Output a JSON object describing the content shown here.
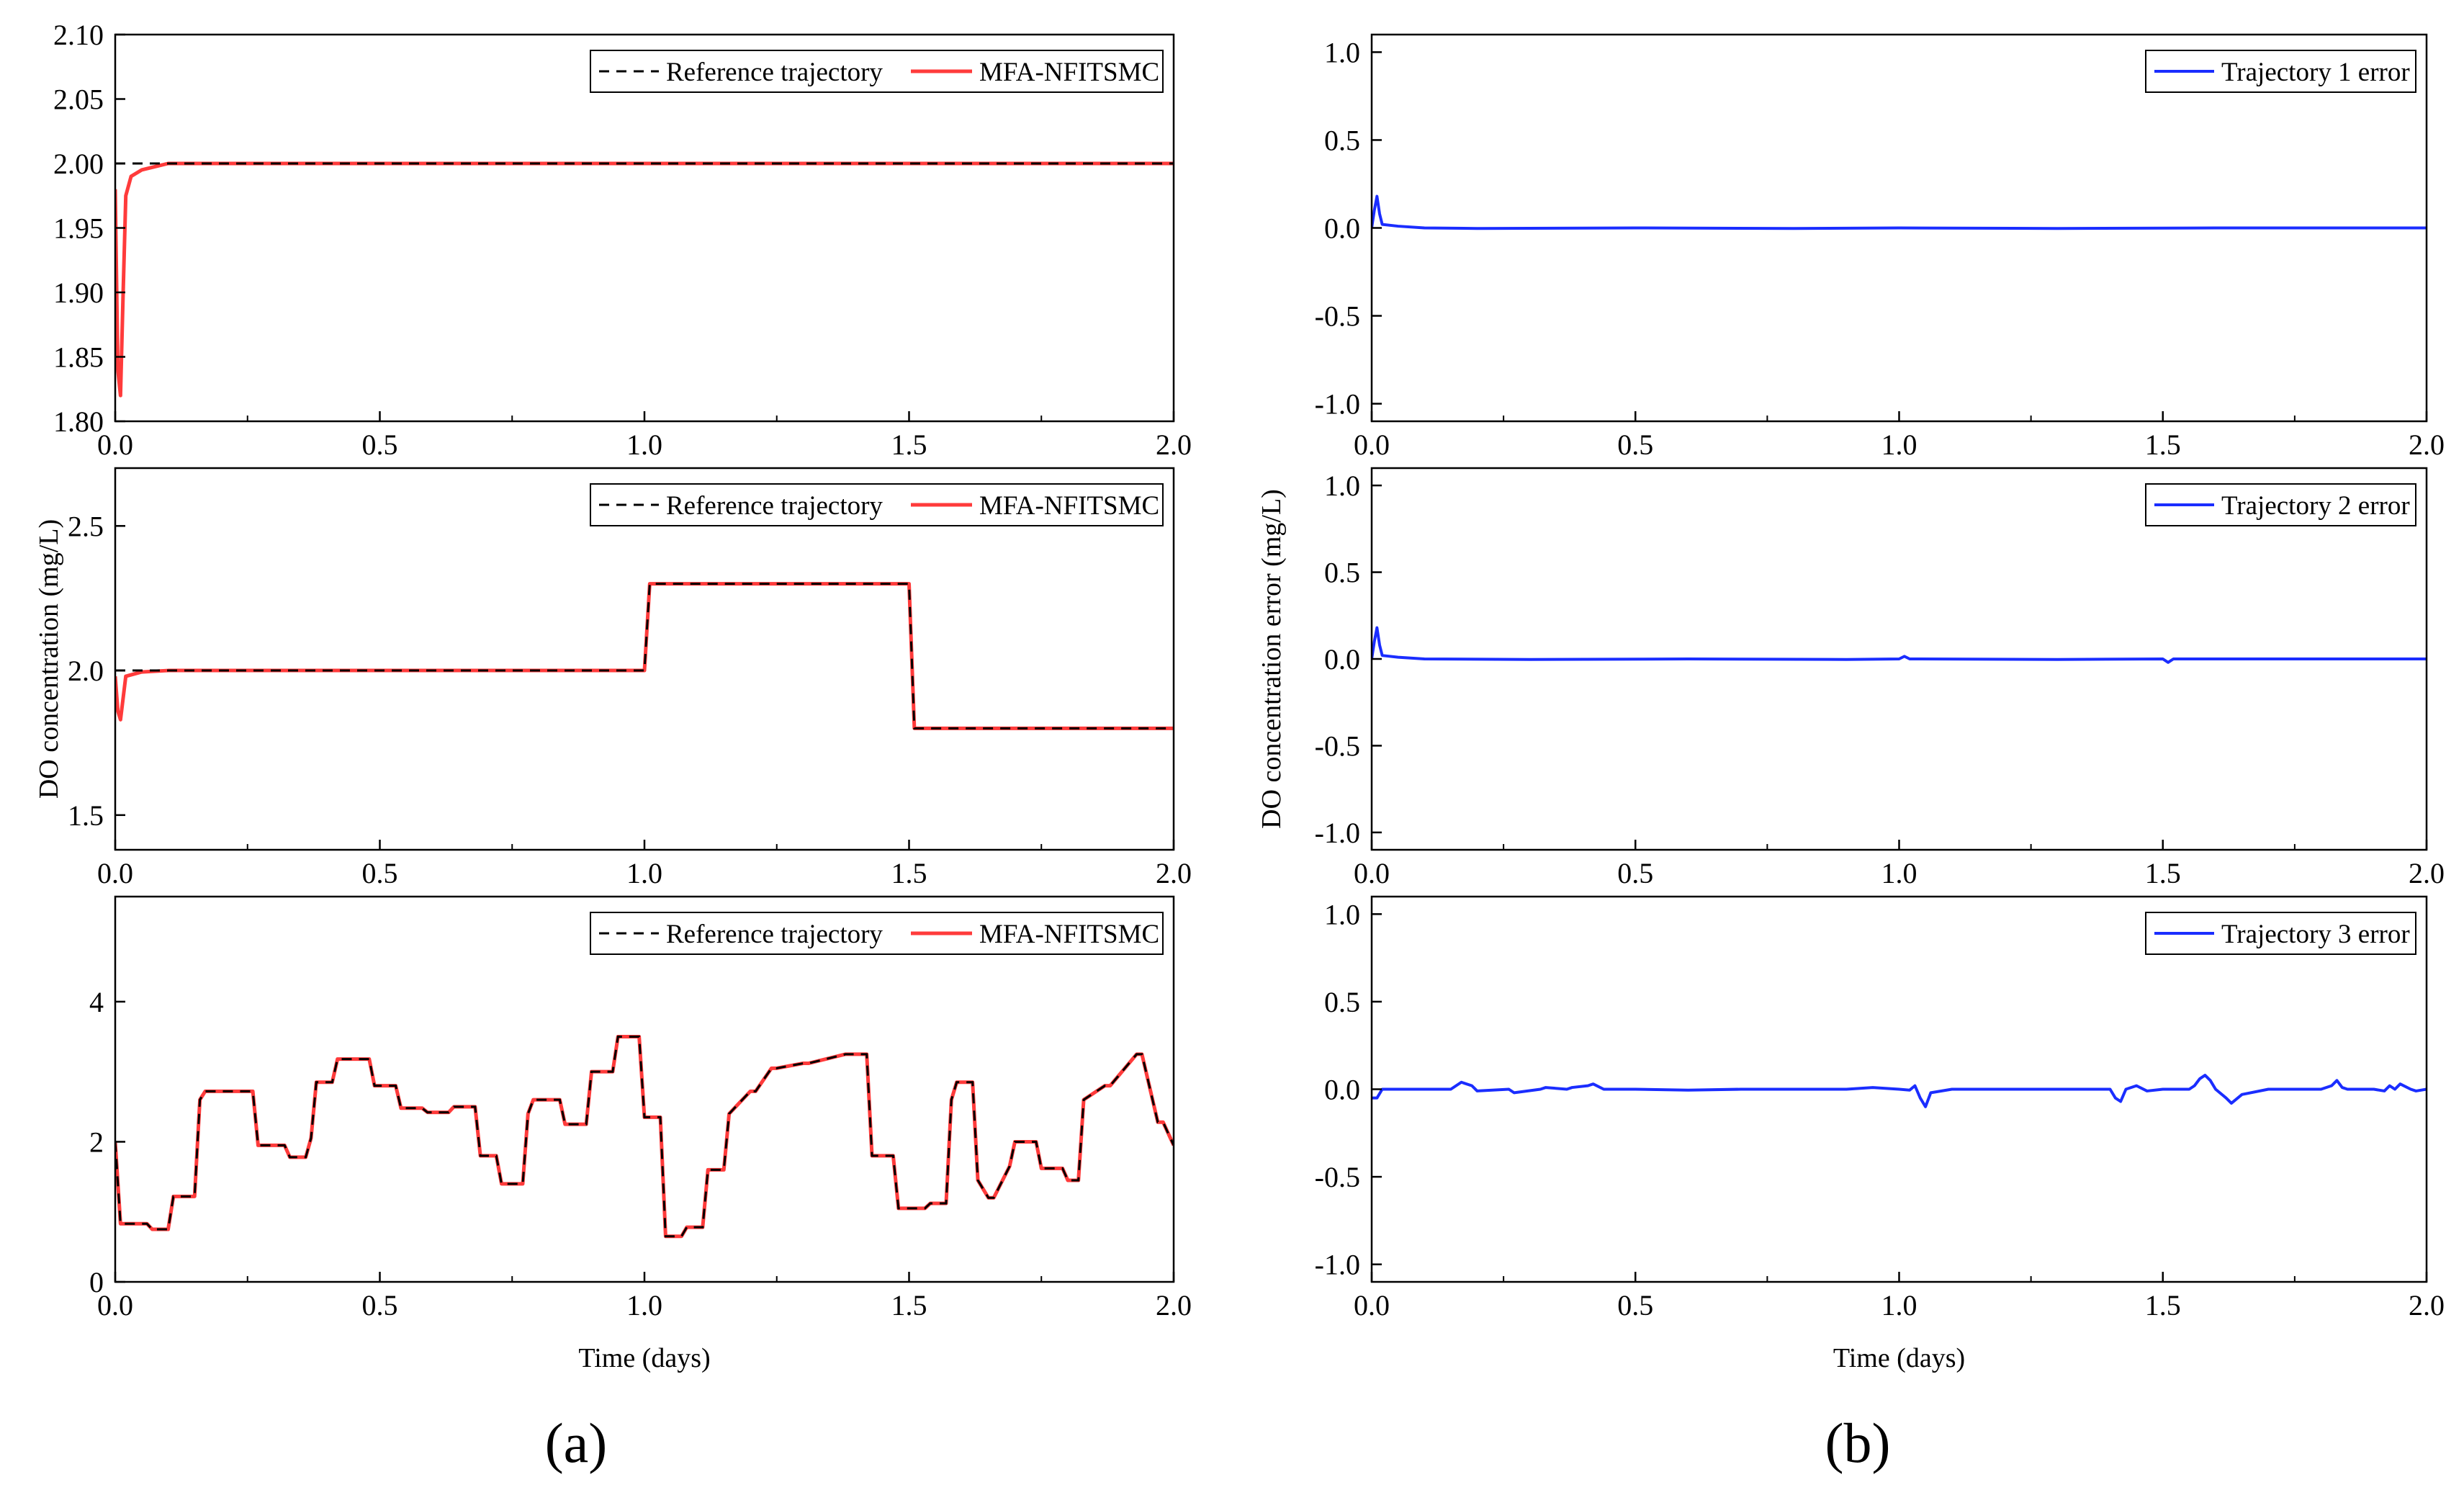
{
  "figure": {
    "panel_labels": [
      "(a)",
      "(b)"
    ]
  },
  "colors": {
    "reference": "#000000",
    "mfa": "#ff3b3b",
    "error": "#1a2dff",
    "axis": "#000000"
  },
  "chart_data": [
    {
      "id": "a1",
      "type": "line",
      "xlabel": "",
      "ylabel": "",
      "xlim": [
        0,
        2
      ],
      "ylim": [
        1.8,
        2.1
      ],
      "xticks": [
        0,
        0.5,
        1,
        1.5,
        2
      ],
      "xtick_labels": [
        "0.0",
        "0.5",
        "1.0",
        "1.5",
        "2.0"
      ],
      "yticks": [
        1.8,
        1.85,
        1.9,
        1.95,
        2.0,
        2.05,
        2.1
      ],
      "ytick_labels": [
        "1.80",
        "1.85",
        "1.90",
        "1.95",
        "2.00",
        "2.05",
        "2.10"
      ],
      "legend": [
        "Reference trajectory",
        "MFA-NFITSMC"
      ],
      "legend_position": "top-right",
      "series": [
        {
          "name": "Reference trajectory",
          "style": "dashed",
          "x": [
            0,
            2
          ],
          "y": [
            2.0,
            2.0
          ]
        },
        {
          "name": "MFA-NFITSMC",
          "style": "solid",
          "x": [
            0,
            0.005,
            0.01,
            0.015,
            0.02,
            0.03,
            0.05,
            0.08,
            0.1,
            0.12,
            2.0
          ],
          "y": [
            1.98,
            1.84,
            1.82,
            1.9,
            1.975,
            1.99,
            1.995,
            1.998,
            2.0,
            2.0,
            2.0
          ]
        }
      ]
    },
    {
      "id": "a2",
      "type": "line",
      "xlabel": "",
      "ylabel": "DO concentration (mg/L)",
      "xlim": [
        0,
        2
      ],
      "ylim": [
        1.38,
        2.7
      ],
      "xticks": [
        0,
        0.5,
        1,
        1.5,
        2
      ],
      "xtick_labels": [
        "0.0",
        "0.5",
        "1.0",
        "1.5",
        "2.0"
      ],
      "yticks": [
        1.5,
        2.0,
        2.5
      ],
      "ytick_labels": [
        "1.5",
        "2.0",
        "2.5"
      ],
      "legend": [
        "Reference trajectory",
        "MFA-NFITSMC"
      ],
      "legend_position": "top-right",
      "series": [
        {
          "name": "Reference trajectory",
          "style": "dashed",
          "x": [
            0,
            1.0,
            1.01,
            1.5,
            1.51,
            2.0
          ],
          "y": [
            2.0,
            2.0,
            2.3,
            2.3,
            1.8,
            1.8
          ]
        },
        {
          "name": "MFA-NFITSMC",
          "style": "solid",
          "x": [
            0,
            0.005,
            0.01,
            0.02,
            0.05,
            0.1,
            1.0,
            1.01,
            1.5,
            1.51,
            2.0
          ],
          "y": [
            1.98,
            1.86,
            1.83,
            1.98,
            1.995,
            2.0,
            2.0,
            2.3,
            2.3,
            1.8,
            1.8
          ]
        }
      ]
    },
    {
      "id": "a3",
      "type": "line",
      "xlabel": "Time (days)",
      "ylabel": "",
      "xlim": [
        0,
        2
      ],
      "ylim": [
        0,
        5.5
      ],
      "xticks": [
        0,
        0.5,
        1,
        1.5,
        2
      ],
      "xtick_labels": [
        "0.0",
        "0.5",
        "1.0",
        "1.5",
        "2.0"
      ],
      "yticks": [
        0,
        2,
        4
      ],
      "ytick_labels": [
        "0",
        "2",
        "4"
      ],
      "legend": [
        "Reference trajectory",
        "MFA-NFITSMC"
      ],
      "legend_position": "top-right",
      "series": [
        {
          "name": "Reference trajectory",
          "style": "dashed",
          "x": [
            0,
            0.01,
            0.06,
            0.07,
            0.1,
            0.11,
            0.15,
            0.16,
            0.17,
            0.2,
            0.26,
            0.27,
            0.32,
            0.33,
            0.36,
            0.37,
            0.38,
            0.41,
            0.42,
            0.46,
            0.48,
            0.49,
            0.53,
            0.54,
            0.58,
            0.59,
            0.63,
            0.64,
            0.68,
            0.69,
            0.72,
            0.73,
            0.77,
            0.78,
            0.79,
            0.84,
            0.85,
            0.89,
            0.9,
            0.94,
            0.95,
            0.99,
            1.0,
            1.01,
            1.03,
            1.04,
            1.07,
            1.08,
            1.11,
            1.12,
            1.15,
            1.16,
            1.2,
            1.21,
            1.24,
            1.25,
            1.3,
            1.31,
            1.38,
            1.39,
            1.42,
            1.43,
            1.46,
            1.47,
            1.48,
            1.53,
            1.54,
            1.57,
            1.58,
            1.59,
            1.62,
            1.63,
            1.65,
            1.66,
            1.69,
            1.7,
            1.74,
            1.75,
            1.79,
            1.8,
            1.82,
            1.83,
            1.87,
            1.88,
            1.93,
            1.94,
            1.97,
            1.98,
            2.0
          ],
          "y": [
            2.0,
            0.83,
            0.83,
            0.75,
            0.75,
            1.22,
            1.22,
            2.6,
            2.72,
            2.72,
            2.72,
            1.95,
            1.95,
            1.78,
            1.78,
            2.05,
            2.85,
            2.85,
            3.18,
            3.18,
            3.18,
            2.8,
            2.8,
            2.48,
            2.48,
            2.42,
            2.42,
            2.5,
            2.5,
            1.8,
            1.8,
            1.4,
            1.4,
            2.4,
            2.6,
            2.6,
            2.25,
            2.25,
            3.0,
            3.0,
            3.5,
            3.5,
            2.35,
            2.35,
            2.35,
            0.65,
            0.65,
            0.78,
            0.78,
            1.6,
            1.6,
            2.4,
            2.72,
            2.72,
            3.05,
            3.05,
            3.12,
            3.12,
            3.25,
            3.25,
            3.25,
            1.8,
            1.8,
            1.8,
            1.05,
            1.05,
            1.12,
            1.12,
            2.6,
            2.85,
            2.85,
            1.45,
            1.2,
            1.2,
            1.65,
            2.0,
            2.0,
            1.62,
            1.62,
            1.45,
            1.45,
            2.6,
            2.8,
            2.8,
            3.25,
            3.25,
            2.28,
            2.28,
            1.95
          ]
        },
        {
          "name": "MFA-NFITSMC",
          "style": "solid",
          "x": [
            0,
            0.01,
            0.06,
            0.07,
            0.1,
            0.11,
            0.15,
            0.16,
            0.17,
            0.2,
            0.26,
            0.27,
            0.32,
            0.33,
            0.36,
            0.37,
            0.38,
            0.41,
            0.42,
            0.46,
            0.48,
            0.49,
            0.53,
            0.54,
            0.58,
            0.59,
            0.63,
            0.64,
            0.68,
            0.69,
            0.72,
            0.73,
            0.77,
            0.78,
            0.79,
            0.84,
            0.85,
            0.89,
            0.9,
            0.94,
            0.95,
            0.99,
            1.0,
            1.01,
            1.03,
            1.04,
            1.07,
            1.08,
            1.11,
            1.12,
            1.15,
            1.16,
            1.2,
            1.21,
            1.24,
            1.25,
            1.3,
            1.31,
            1.38,
            1.39,
            1.42,
            1.43,
            1.46,
            1.47,
            1.48,
            1.53,
            1.54,
            1.57,
            1.58,
            1.59,
            1.62,
            1.63,
            1.65,
            1.66,
            1.69,
            1.7,
            1.74,
            1.75,
            1.79,
            1.8,
            1.82,
            1.83,
            1.87,
            1.88,
            1.93,
            1.94,
            1.97,
            1.98,
            2.0
          ],
          "y": [
            2.0,
            0.83,
            0.83,
            0.75,
            0.75,
            1.22,
            1.22,
            2.6,
            2.72,
            2.72,
            2.72,
            1.95,
            1.95,
            1.78,
            1.78,
            2.05,
            2.85,
            2.85,
            3.18,
            3.18,
            3.18,
            2.8,
            2.8,
            2.48,
            2.48,
            2.42,
            2.42,
            2.5,
            2.5,
            1.8,
            1.8,
            1.4,
            1.4,
            2.4,
            2.6,
            2.6,
            2.25,
            2.25,
            3.0,
            3.0,
            3.5,
            3.5,
            2.35,
            2.35,
            2.35,
            0.65,
            0.65,
            0.78,
            0.78,
            1.6,
            1.6,
            2.4,
            2.72,
            2.72,
            3.05,
            3.05,
            3.12,
            3.12,
            3.25,
            3.25,
            3.25,
            1.8,
            1.8,
            1.8,
            1.05,
            1.05,
            1.12,
            1.12,
            2.6,
            2.85,
            2.85,
            1.45,
            1.2,
            1.2,
            1.65,
            2.0,
            2.0,
            1.62,
            1.62,
            1.45,
            1.45,
            2.6,
            2.8,
            2.8,
            3.25,
            3.25,
            2.28,
            2.28,
            1.95
          ]
        }
      ]
    },
    {
      "id": "b1",
      "type": "line",
      "xlabel": "",
      "ylabel": "",
      "xlim": [
        0,
        2
      ],
      "ylim": [
        -1.1,
        1.1
      ],
      "xticks": [
        0,
        0.5,
        1,
        1.5,
        2
      ],
      "xtick_labels": [
        "0.0",
        "0.5",
        "1.0",
        "1.5",
        "2.0"
      ],
      "yticks": [
        -1.0,
        -0.5,
        0.0,
        0.5,
        1.0
      ],
      "ytick_labels": [
        "-1.0",
        "-0.5",
        "0.0",
        "0.5",
        "1.0"
      ],
      "legend": [
        "Trajectory 1 error"
      ],
      "legend_position": "top-right",
      "series": [
        {
          "name": "Trajectory 1 error",
          "style": "solid",
          "x": [
            0,
            0.005,
            0.01,
            0.015,
            0.02,
            0.05,
            0.1,
            0.2,
            0.5,
            0.8,
            1.0,
            1.3,
            1.6,
            2.0
          ],
          "y": [
            0.0,
            0.1,
            0.18,
            0.08,
            0.02,
            0.01,
            0.0,
            -0.003,
            0.0,
            -0.003,
            0.0,
            -0.003,
            0.0,
            0.0
          ]
        }
      ]
    },
    {
      "id": "b2",
      "type": "line",
      "xlabel": "",
      "ylabel": "DO concentration error (mg/L)",
      "xlim": [
        0,
        2
      ],
      "ylim": [
        -1.1,
        1.1
      ],
      "xticks": [
        0,
        0.5,
        1,
        1.5,
        2
      ],
      "xtick_labels": [
        "0.0",
        "0.5",
        "1.0",
        "1.5",
        "2.0"
      ],
      "yticks": [
        -1.0,
        -0.5,
        0.0,
        0.5,
        1.0
      ],
      "ytick_labels": [
        "-1.0",
        "-0.5",
        "0.0",
        "0.5",
        "1.0"
      ],
      "legend": [
        "Trajectory 2 error"
      ],
      "legend_position": "top-right",
      "series": [
        {
          "name": "Trajectory 2 error",
          "style": "solid",
          "x": [
            0,
            0.005,
            0.01,
            0.015,
            0.02,
            0.05,
            0.1,
            0.3,
            0.6,
            0.9,
            1.0,
            1.01,
            1.02,
            1.3,
            1.5,
            1.51,
            1.52,
            1.8,
            2.0
          ],
          "y": [
            0.0,
            0.1,
            0.18,
            0.08,
            0.02,
            0.01,
            0.0,
            -0.003,
            0.0,
            -0.003,
            0.0,
            0.015,
            0.0,
            -0.003,
            0.0,
            -0.02,
            0.0,
            0.0,
            0.0
          ]
        }
      ]
    },
    {
      "id": "b3",
      "type": "line",
      "xlabel": "Time (days)",
      "ylabel": "",
      "xlim": [
        0,
        2
      ],
      "ylim": [
        -1.1,
        1.1
      ],
      "xticks": [
        0,
        0.5,
        1,
        1.5,
        2
      ],
      "xtick_labels": [
        "0.0",
        "0.5",
        "1.0",
        "1.5",
        "2.0"
      ],
      "yticks": [
        -1.0,
        -0.5,
        0.0,
        0.5,
        1.0
      ],
      "ytick_labels": [
        "-1.0",
        "-0.5",
        "0.0",
        "0.5",
        "1.0"
      ],
      "legend": [
        "Trajectory 3 error"
      ],
      "legend_position": "top-right",
      "series": [
        {
          "name": "Trajectory 3 error",
          "style": "solid",
          "x": [
            0,
            0.01,
            0.02,
            0.1,
            0.15,
            0.16,
            0.17,
            0.19,
            0.2,
            0.26,
            0.27,
            0.32,
            0.33,
            0.37,
            0.38,
            0.41,
            0.42,
            0.44,
            0.5,
            0.6,
            0.7,
            0.8,
            0.9,
            0.95,
            1.0,
            1.02,
            1.03,
            1.04,
            1.05,
            1.06,
            1.1,
            1.2,
            1.3,
            1.4,
            1.41,
            1.42,
            1.43,
            1.45,
            1.47,
            1.5,
            1.55,
            1.56,
            1.57,
            1.58,
            1.59,
            1.6,
            1.62,
            1.63,
            1.65,
            1.7,
            1.8,
            1.82,
            1.83,
            1.84,
            1.85,
            1.9,
            1.92,
            1.93,
            1.94,
            1.95,
            1.97,
            1.98,
            2.0
          ],
          "y": [
            -0.05,
            -0.05,
            0.0,
            0.0,
            0.0,
            0.02,
            0.04,
            0.02,
            -0.01,
            0.0,
            -0.02,
            0.0,
            0.01,
            0.0,
            0.01,
            0.02,
            0.03,
            0.0,
            0.0,
            -0.005,
            0.0,
            0.0,
            0.0,
            0.01,
            0.0,
            -0.005,
            0.02,
            -0.05,
            -0.1,
            -0.02,
            0.0,
            0.0,
            0.0,
            0.0,
            -0.05,
            -0.07,
            0.0,
            0.02,
            -0.01,
            0.0,
            0.0,
            0.02,
            0.06,
            0.08,
            0.05,
            0.0,
            -0.05,
            -0.08,
            -0.03,
            0.0,
            0.0,
            0.02,
            0.05,
            0.01,
            0.0,
            0.0,
            -0.01,
            0.02,
            0.0,
            0.03,
            0.0,
            -0.01,
            0.0
          ]
        }
      ]
    }
  ]
}
